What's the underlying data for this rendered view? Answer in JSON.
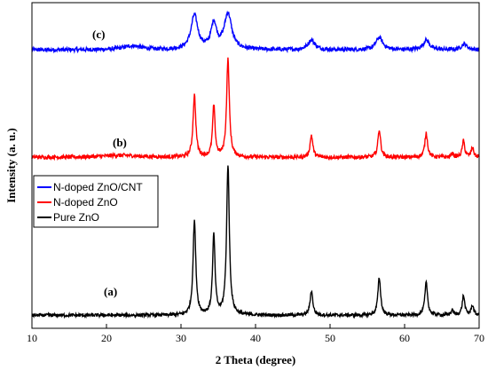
{
  "chart_data": {
    "type": "line",
    "xlabel": "2 Theta (degree)",
    "ylabel": "Intensity (a. u.)",
    "xlim": [
      10,
      70
    ],
    "xticks": [
      10,
      20,
      30,
      40,
      50,
      60,
      70
    ],
    "y_ticks_shown": false,
    "grid": false,
    "legend": {
      "placement": "middle-left",
      "entries": [
        {
          "label": "N-doped ZnO/CNT",
          "color": "#0000ff"
        },
        {
          "label": "N-doped ZnO",
          "color": "#ff0000"
        },
        {
          "label": "Pure ZnO",
          "color": "#000000"
        }
      ]
    },
    "annotations": [
      "(c)",
      "(b)",
      "(a)"
    ],
    "series": [
      {
        "name": "N-doped ZnO/CNT",
        "color": "#0000ff",
        "annotation": "(c)",
        "offset": 0.855,
        "background": 0.006,
        "peaks": [
          [
            23.5,
            0.012,
            1.5
          ],
          [
            31.8,
            0.105,
            0.55
          ],
          [
            34.4,
            0.078,
            0.45
          ],
          [
            36.3,
            0.11,
            0.6
          ],
          [
            47.5,
            0.03,
            0.55
          ],
          [
            56.6,
            0.038,
            0.55
          ],
          [
            62.9,
            0.03,
            0.5
          ],
          [
            68.0,
            0.018,
            0.45
          ]
        ]
      },
      {
        "name": "N-doped ZnO",
        "color": "#ff0000",
        "annotation": "(b)",
        "offset": 0.525,
        "background": 0.006,
        "peaks": [
          [
            22.0,
            0.006,
            3.0
          ],
          [
            31.8,
            0.19,
            0.22
          ],
          [
            34.4,
            0.157,
            0.2
          ],
          [
            36.3,
            0.3,
            0.22
          ],
          [
            47.5,
            0.068,
            0.22
          ],
          [
            56.6,
            0.085,
            0.22
          ],
          [
            62.9,
            0.075,
            0.22
          ],
          [
            66.4,
            0.012,
            0.2
          ],
          [
            67.9,
            0.05,
            0.2
          ],
          [
            69.1,
            0.03,
            0.2
          ]
        ]
      },
      {
        "name": "Pure ZnO",
        "color": "#000000",
        "annotation": "(a)",
        "offset": 0.04,
        "background": 0.005,
        "peaks": [
          [
            31.8,
            0.29,
            0.22
          ],
          [
            34.4,
            0.245,
            0.2
          ],
          [
            36.3,
            0.46,
            0.22
          ],
          [
            47.5,
            0.075,
            0.22
          ],
          [
            56.6,
            0.115,
            0.22
          ],
          [
            62.9,
            0.1,
            0.22
          ],
          [
            66.4,
            0.015,
            0.2
          ],
          [
            67.9,
            0.06,
            0.2
          ],
          [
            69.1,
            0.03,
            0.2
          ]
        ]
      }
    ]
  }
}
